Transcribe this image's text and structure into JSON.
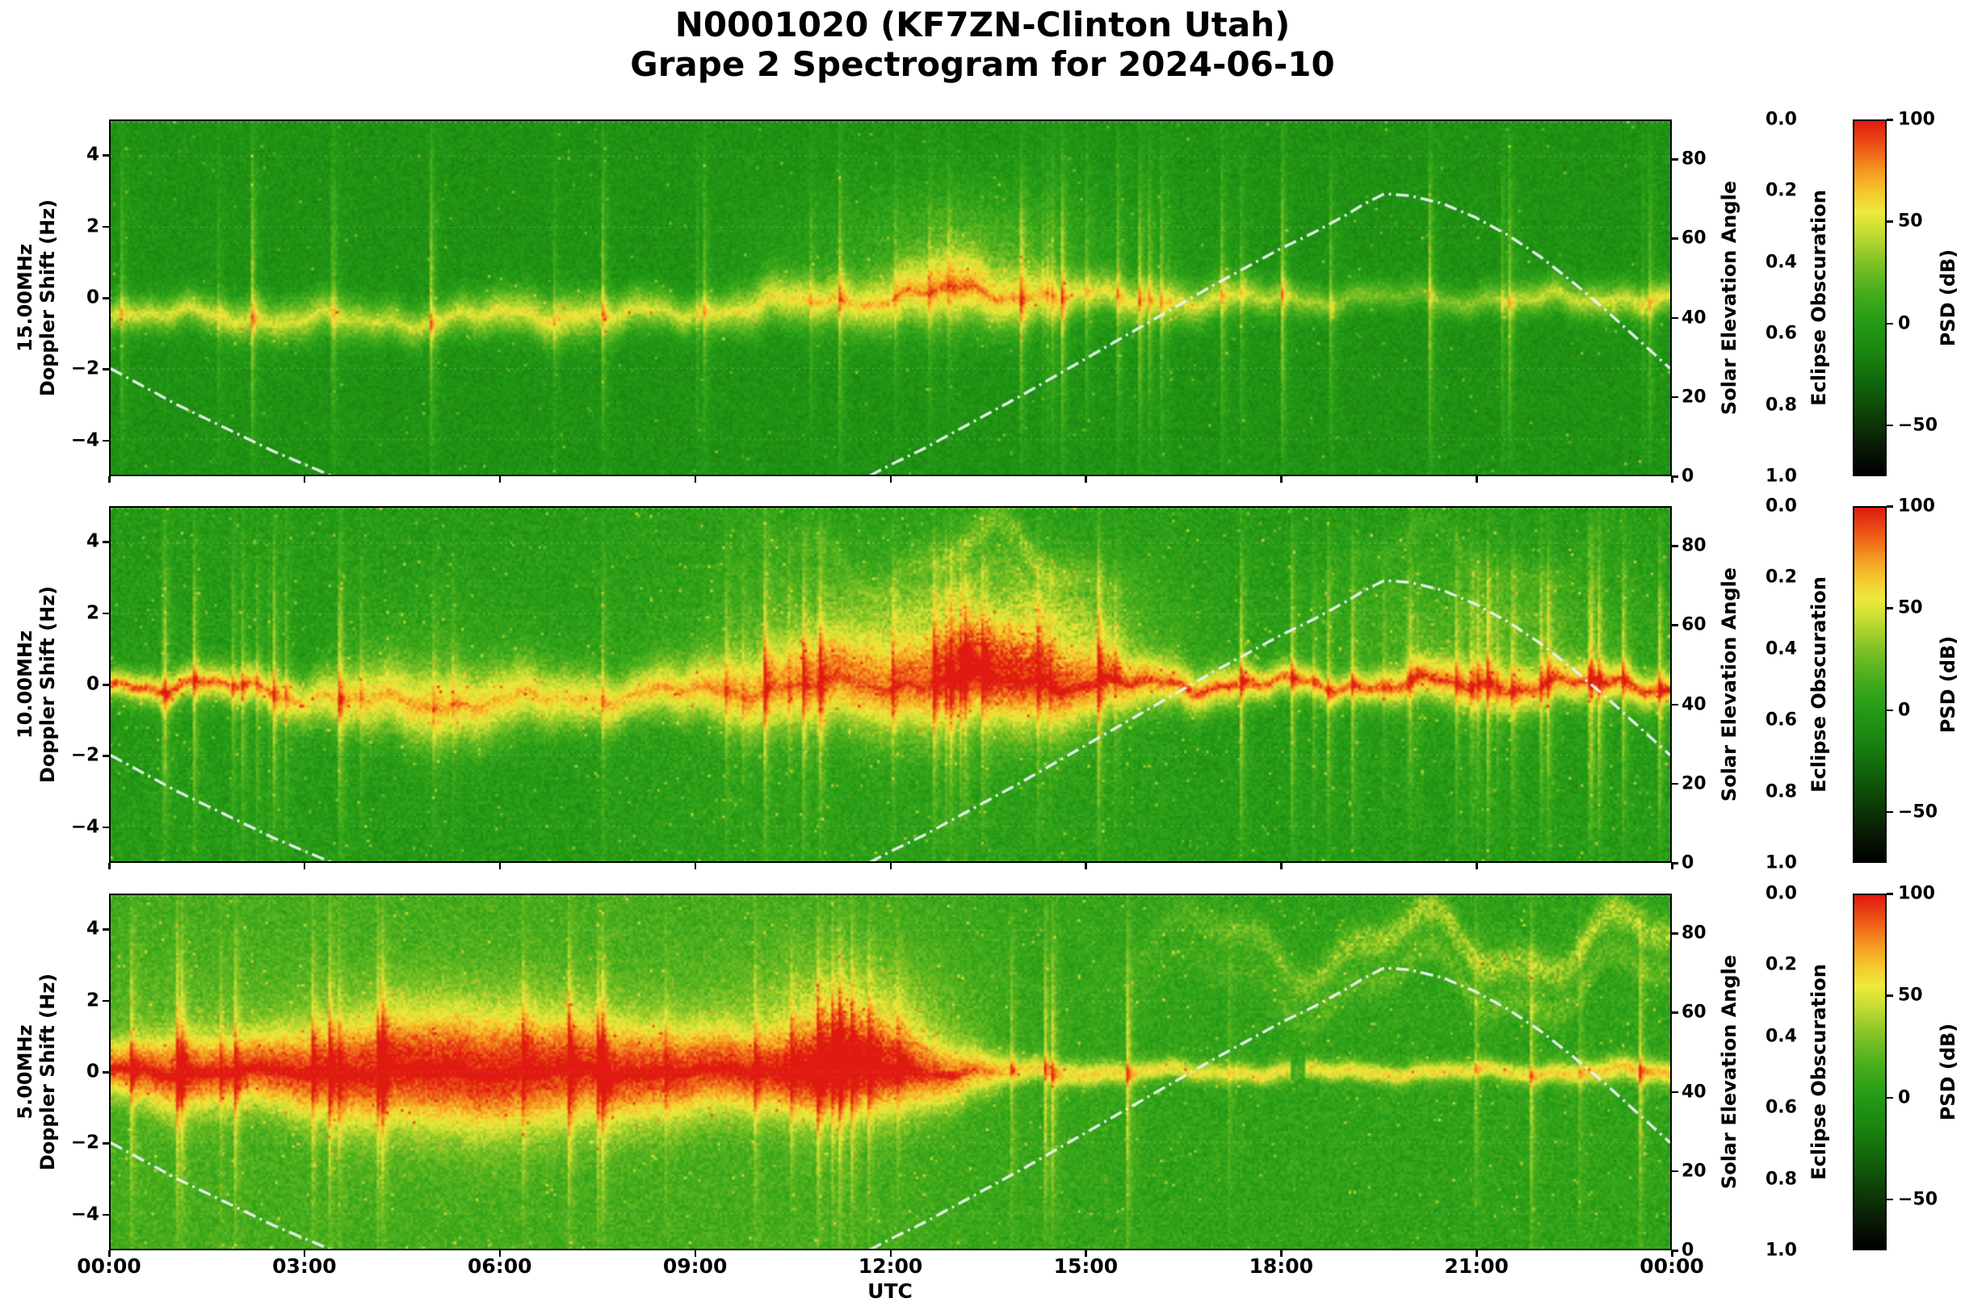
{
  "title": {
    "line1": "N0001020 (KF7ZN-Clinton Utah)",
    "line2": "Grape 2 Spectrogram for 2024-06-10"
  },
  "axes": {
    "xlabel": "UTC",
    "xtick_labels": [
      "00:00",
      "03:00",
      "06:00",
      "09:00",
      "12:00",
      "15:00",
      "18:00",
      "21:00",
      "00:00"
    ],
    "doppler_axis_label": "Doppler Shift (Hz)",
    "doppler_tick_labels": [
      "−4",
      "−2",
      "0",
      "2",
      "4"
    ],
    "solar_axis_label": "Solar Elevation Angle",
    "solar_tick_labels": [
      "0",
      "20",
      "40",
      "60",
      "80"
    ],
    "eclipse_axis_label": "Eclipse Obscuration",
    "eclipse_tick_labels": [
      "0.0",
      "0.2",
      "0.4",
      "0.6",
      "0.8",
      "1.0"
    ],
    "psd_axis_label": "PSD (dB)",
    "psd_tick_labels": [
      "100",
      "50",
      "0",
      "−50"
    ]
  },
  "chart_data": {
    "type": "heatmap",
    "title": "N0001020 (KF7ZN-Clinton Utah) — Grape 2 Spectrogram for 2024-06-10",
    "x_axis": {
      "label": "UTC",
      "range_hours": [
        0,
        24
      ],
      "ticks_hours": [
        0,
        3,
        6,
        9,
        12,
        15,
        18,
        21,
        24
      ]
    },
    "y_axis": {
      "label": "Doppler Shift (Hz)",
      "range": [
        -5,
        5
      ],
      "ticks": [
        -4,
        -2,
        0,
        2,
        4
      ]
    },
    "solar_axis": {
      "label": "Solar Elevation Angle",
      "range_deg": [
        0,
        90
      ],
      "ticks": [
        0,
        20,
        40,
        60,
        80
      ]
    },
    "eclipse_axis": {
      "label": "Eclipse Obscuration",
      "range": [
        0,
        1
      ],
      "ticks": [
        0,
        0.2,
        0.4,
        0.6,
        0.8,
        1.0
      ],
      "inverted": true
    },
    "colorbar": {
      "label": "PSD (dB)",
      "range": [
        -75,
        100
      ],
      "ticks": [
        100,
        50,
        0,
        -50
      ],
      "stops": [
        [
          -75,
          "#000000"
        ],
        [
          -60,
          "#0a1e06"
        ],
        [
          -45,
          "#0d4207"
        ],
        [
          -30,
          "#11660b"
        ],
        [
          -15,
          "#1a8410"
        ],
        [
          0,
          "#239b16"
        ],
        [
          15,
          "#46ad1d"
        ],
        [
          30,
          "#7fc226"
        ],
        [
          45,
          "#c6dc32"
        ],
        [
          55,
          "#eeea3c"
        ],
        [
          65,
          "#f5c72e"
        ],
        [
          75,
          "#f59b22"
        ],
        [
          85,
          "#ef6318"
        ],
        [
          100,
          "#e01a10"
        ]
      ]
    },
    "solar_elevation_curve": {
      "style": "dash-dot",
      "color": "#e6f2ee",
      "hours": [
        0,
        0.5,
        1,
        1.5,
        2,
        2.5,
        3,
        3.5,
        3.8,
        11.3,
        11.6,
        12,
        12.5,
        13,
        13.5,
        14,
        15,
        16,
        17,
        18,
        18.5,
        19,
        19.3,
        19.6,
        20,
        20.5,
        21,
        21.5,
        22,
        22.5,
        23,
        23.5,
        24
      ],
      "elevation_deg": [
        27,
        22.5,
        18,
        14,
        10,
        6,
        2.5,
        -1,
        -4,
        -4,
        -1,
        2.5,
        6.5,
        11,
        15.5,
        20,
        29.5,
        39,
        48.5,
        57.5,
        61.5,
        66,
        69,
        71.5,
        71,
        69,
        65.5,
        61,
        55.5,
        49,
        42,
        34.5,
        27
      ]
    },
    "panels": [
      {
        "freq_label": "15.00MHz",
        "frequency_mhz": 15.0,
        "seed": 11,
        "noise_sd": 7,
        "sparkle": 0.004,
        "wiggle_hz": 0.28,
        "description": "Green background; thin wavy yellow Doppler trace just below 0 Hz overnight, rising to 0 Hz and becoming spiky/spread 10:00-15:00 UTC, patchy weak signal 18:00-22:00",
        "background_db": [
          -6,
          -6,
          -6,
          -6,
          -6,
          -6,
          -6,
          -6,
          -6,
          -6,
          -6,
          -6,
          -6,
          -6,
          -6,
          -6,
          -6,
          -6,
          -6,
          -6,
          -6,
          -6,
          -6,
          -6,
          -6
        ],
        "trace_intensity_db": [
          45,
          45,
          48,
          45,
          42,
          44,
          50,
          52,
          48,
          45,
          50,
          52,
          55,
          58,
          54,
          45,
          48,
          45,
          40,
          30,
          26,
          32,
          42,
          45,
          48
        ],
        "trace_width_hz": [
          0.35,
          0.35,
          0.4,
          0.45,
          0.4,
          0.38,
          0.45,
          0.5,
          0.42,
          0.36,
          0.5,
          0.5,
          0.6,
          0.7,
          0.6,
          0.4,
          0.45,
          0.4,
          0.35,
          0.3,
          0.3,
          0.3,
          0.35,
          0.35,
          0.35
        ],
        "trace_center_hz": [
          -0.4,
          -0.5,
          -0.55,
          -0.6,
          -0.7,
          -0.6,
          -0.5,
          -0.45,
          -0.5,
          -0.4,
          -0.2,
          -0.1,
          0,
          0.2,
          0.1,
          0,
          0,
          -0.1,
          0,
          0,
          0,
          0,
          -0.1,
          0,
          0
        ],
        "core_intensity_db": [
          10,
          10,
          10,
          10,
          10,
          10,
          12,
          12,
          10,
          10,
          12,
          14,
          15,
          16,
          14,
          10,
          10,
          10,
          8,
          5,
          4,
          6,
          9,
          10,
          10
        ],
        "streak_density": [
          0.1,
          0.15,
          0.3,
          0.1,
          0.1,
          0.1,
          0.15,
          0.15,
          0.2,
          0.2,
          0.35,
          0.4,
          0.45,
          0.6,
          0.55,
          0.4,
          0.35,
          0.3,
          0.25,
          0.15,
          0.2,
          0.25,
          0.2,
          0.15,
          0.15
        ],
        "plume_intensity_db": [
          0,
          0,
          0,
          0,
          0,
          0,
          0,
          0,
          0,
          0,
          5,
          8,
          15,
          25,
          20,
          8,
          5,
          3,
          0,
          0,
          0,
          0,
          0,
          0,
          0
        ],
        "high_band_intensity_db": [
          0,
          0,
          0,
          0,
          0,
          0,
          0,
          0,
          0,
          0,
          0,
          0,
          0,
          0,
          0,
          0,
          0,
          0,
          0,
          0,
          0,
          0,
          0,
          0,
          0
        ],
        "gaps_hours": []
      },
      {
        "freq_label": "10.00MHz",
        "frequency_mhz": 10.0,
        "seed": 22,
        "noise_sd": 8,
        "sparkle": 0.01,
        "wiggle_hz": 0.3,
        "description": "Bright speckled green; strong yellow 0 Hz trace with red flecks, wavy dip 04:00-08:00, broad yellow fuzz 10:00-16:00 reaching +4 Hz, many vertical stripes especially 01:00-02:30 and 17:00-24:00",
        "background_db": [
          0,
          0,
          0,
          0,
          0,
          0,
          0,
          0,
          2,
          3,
          4,
          4,
          4,
          4,
          4,
          3,
          2,
          0,
          0,
          0,
          0,
          0,
          0,
          0,
          0
        ],
        "trace_intensity_db": [
          60,
          62,
          58,
          55,
          57,
          60,
          58,
          55,
          55,
          58,
          60,
          62,
          62,
          65,
          68,
          64,
          62,
          65,
          60,
          58,
          60,
          62,
          60,
          62,
          65
        ],
        "trace_width_hz": [
          0.3,
          0.35,
          0.4,
          0.5,
          0.7,
          0.8,
          0.7,
          0.6,
          0.5,
          0.6,
          0.8,
          0.9,
          0.9,
          1.0,
          1.0,
          0.8,
          0.5,
          0.4,
          0.35,
          0.3,
          0.4,
          0.5,
          0.45,
          0.4,
          0.35
        ],
        "trace_center_hz": [
          0,
          0,
          -0.1,
          -0.3,
          -0.5,
          -0.55,
          -0.5,
          -0.4,
          -0.3,
          -0.2,
          -0.1,
          0,
          0,
          0.1,
          0.1,
          0,
          0,
          0,
          0,
          0,
          0,
          0,
          0,
          0,
          0
        ],
        "core_intensity_db": [
          25,
          28,
          20,
          10,
          10,
          12,
          10,
          8,
          10,
          12,
          10,
          12,
          12,
          15,
          20,
          22,
          20,
          25,
          22,
          20,
          22,
          20,
          18,
          22,
          25
        ],
        "streak_density": [
          0.2,
          0.5,
          0.6,
          0.3,
          0.25,
          0.3,
          0.3,
          0.25,
          0.3,
          0.35,
          0.4,
          0.45,
          0.4,
          0.5,
          0.5,
          0.4,
          0.35,
          0.5,
          0.55,
          0.5,
          0.55,
          0.6,
          0.65,
          0.6,
          0.55
        ],
        "plume_intensity_db": [
          0,
          0,
          0,
          0,
          5,
          8,
          5,
          3,
          3,
          5,
          15,
          20,
          25,
          35,
          40,
          28,
          12,
          5,
          3,
          8,
          15,
          18,
          15,
          10,
          5
        ],
        "high_band_intensity_db": [
          0,
          0,
          0,
          0,
          0,
          0,
          0,
          0,
          0,
          0,
          5,
          8,
          10,
          18,
          22,
          12,
          3,
          0,
          0,
          5,
          8,
          10,
          8,
          5,
          0
        ],
        "gaps_hours": []
      },
      {
        "freq_label": "5.00MHz",
        "frequency_mhz": 5.0,
        "seed": 33,
        "noise_sd": 8,
        "sparkle": 0.008,
        "wiggle_hz": 0.15,
        "description": "Yellow-green background; intense red/orange 0 Hz band 00:00-13:30 with wide yellow halo and plume to +2.5 Hz near 11:30; thin yellow line after 14:00 with short gap ~18:20; wavy faint yellow traces at +3..+5 Hz from 16:00-24:00",
        "background_db": [
          14,
          14,
          14,
          14,
          14,
          14,
          14,
          14,
          14,
          14,
          14,
          14,
          13,
          11,
          9,
          8,
          7,
          6,
          6,
          6,
          6,
          6,
          6,
          6,
          6
        ],
        "trace_intensity_db": [
          70,
          75,
          72,
          75,
          78,
          80,
          80,
          78,
          78,
          75,
          72,
          75,
          70,
          65,
          50,
          52,
          50,
          48,
          50,
          50,
          52,
          50,
          52,
          55,
          58
        ],
        "trace_width_hz": [
          0.5,
          0.8,
          0.7,
          0.9,
          1.1,
          1.2,
          1.2,
          1.1,
          1.0,
          0.9,
          0.8,
          1.0,
          0.9,
          0.6,
          0.25,
          0.25,
          0.2,
          0.2,
          0.2,
          0.2,
          0.2,
          0.2,
          0.2,
          0.25,
          0.25
        ],
        "trace_center_hz": [
          0,
          0,
          0,
          0,
          0,
          0,
          0,
          0,
          0,
          0,
          0,
          0,
          0,
          0,
          0,
          0,
          0,
          0,
          0,
          0,
          0,
          0,
          0,
          0,
          0
        ],
        "core_intensity_db": [
          20,
          25,
          25,
          25,
          25,
          25,
          25,
          25,
          25,
          22,
          20,
          22,
          20,
          15,
          2,
          2,
          2,
          2,
          2,
          2,
          2,
          2,
          2,
          3,
          3
        ],
        "streak_density": [
          0.2,
          0.25,
          0.3,
          0.25,
          0.2,
          0.2,
          0.2,
          0.2,
          0.2,
          0.2,
          0.3,
          0.5,
          0.5,
          0.35,
          0.2,
          0.15,
          0.1,
          0.1,
          0.1,
          0.1,
          0.1,
          0.1,
          0.1,
          0.1,
          0.1
        ],
        "plume_intensity_db": [
          5,
          8,
          6,
          8,
          10,
          10,
          10,
          8,
          8,
          8,
          15,
          35,
          30,
          10,
          0,
          0,
          0,
          0,
          0,
          0,
          0,
          0,
          0,
          0,
          0
        ],
        "high_band_intensity_db": [
          0,
          0,
          0,
          0,
          0,
          0,
          0,
          0,
          0,
          0,
          0,
          0,
          0,
          0,
          0,
          0,
          8,
          15,
          20,
          25,
          30,
          32,
          30,
          32,
          30
        ],
        "gaps_hours": [
          [
            18.15,
            18.4
          ]
        ]
      }
    ]
  }
}
